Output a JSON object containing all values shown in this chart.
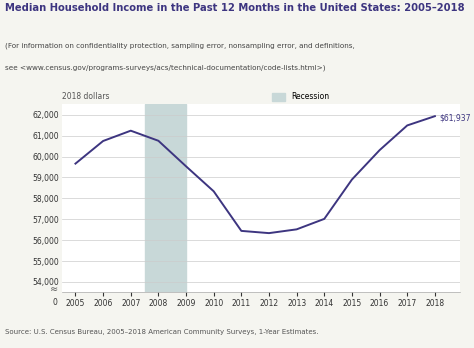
{
  "title": "Median Household Income in the Past 12 Months in the United States: 2005–2018",
  "subtitle_line1": "(For information on confidentiality protection, sampling error, nonsampling error, and definitions,",
  "subtitle_line2": "see <www.census.gov/programs-surveys/acs/technical-documentation/code-lists.html>)",
  "source": "Source: U.S. Census Bureau, 2005–2018 American Community Surveys, 1-Year Estimates.",
  "ylabel": "2018 dollars",
  "years": [
    2005,
    2006,
    2007,
    2008,
    2009,
    2010,
    2011,
    2012,
    2013,
    2014,
    2015,
    2016,
    2017,
    2018
  ],
  "values": [
    59664,
    60747,
    61241,
    60758,
    59534,
    58338,
    56442,
    56335,
    56516,
    57017,
    58902,
    60309,
    61493,
    61937
  ],
  "recession_start": 2007.5,
  "recession_end": 2009.0,
  "line_color": "#3d3580",
  "recession_color": "#c8d8d8",
  "title_color": "#3d3580",
  "bg_color": "#f5f5f0",
  "plot_bg_color": "#ffffff",
  "annotation_label": "$61,937",
  "yticks_main": [
    54000,
    55000,
    56000,
    57000,
    58000,
    59000,
    60000,
    61000,
    62000
  ],
  "ylim_main": [
    53500,
    62500
  ],
  "xlim": [
    2004.5,
    2018.9
  ]
}
